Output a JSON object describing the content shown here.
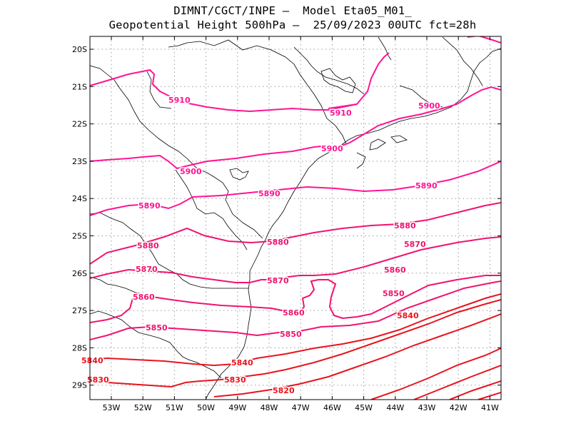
{
  "header": {
    "line1": "DIMNT/CGCT/INPE —  Model Eta05_M01_",
    "line2": "Geopotential Height 500hPa —  25/09/2023 00UTC fct=28h"
  },
  "axes": {
    "lat_labels": [
      "20S",
      "21S",
      "22S",
      "23S",
      "24S",
      "25S",
      "26S",
      "27S",
      "28S",
      "29S"
    ],
    "lon_labels": [
      "53W",
      "52W",
      "51W",
      "50W",
      "49W",
      "48W",
      "47W",
      "46W",
      "45W",
      "44W",
      "43W",
      "42W",
      "41W"
    ]
  },
  "contour_labels": [
    {
      "text": "5910"
    },
    {
      "text": "5910"
    },
    {
      "text": "5900"
    },
    {
      "text": "5900"
    },
    {
      "text": "5900"
    },
    {
      "text": "5890"
    },
    {
      "text": "5890"
    },
    {
      "text": "5890"
    },
    {
      "text": "5880"
    },
    {
      "text": "5880"
    },
    {
      "text": "5880"
    },
    {
      "text": "5870"
    },
    {
      "text": "5870"
    },
    {
      "text": "5870"
    },
    {
      "text": "5860"
    },
    {
      "text": "5860"
    },
    {
      "text": "5860"
    },
    {
      "text": "5850"
    },
    {
      "text": "5850"
    },
    {
      "text": "5850"
    },
    {
      "text": "5840"
    },
    {
      "text": "5840"
    },
    {
      "text": "5840"
    },
    {
      "text": "5830"
    },
    {
      "text": "5830"
    },
    {
      "text": "5820"
    }
  ],
  "colors": {
    "contour_high": "#ff1493",
    "contour_mid": "#f0146e",
    "contour_low": "#e8141e",
    "coast": "#000000",
    "grid": "#9a9a9a"
  }
}
